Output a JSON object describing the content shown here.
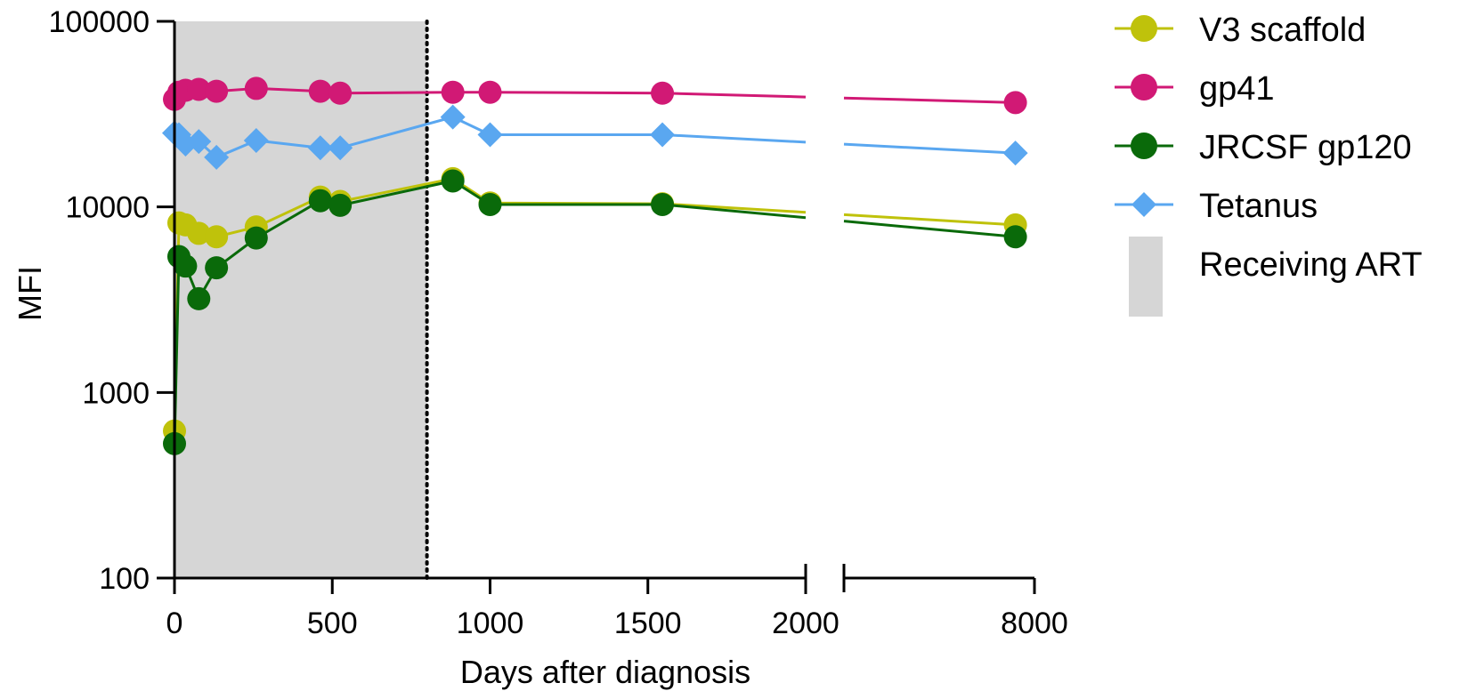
{
  "chart_data": {
    "type": "line",
    "title": "",
    "xlabel": "Days after diagnosis",
    "ylabel": "MFI",
    "yscale": "log",
    "ylim": [
      100,
      100000
    ],
    "yticks": [
      100,
      1000,
      10000,
      100000
    ],
    "ytick_labels": [
      "100",
      "1000",
      "10000",
      "100000"
    ],
    "x_axis_break": {
      "segment1": [
        0,
        2000
      ],
      "segment2": [
        2000,
        8000
      ]
    },
    "xticks": [
      0,
      500,
      1000,
      1500,
      2000,
      8000
    ],
    "xtick_labels": [
      "0",
      "500",
      "1000",
      "1500",
      "2000",
      "8000"
    ],
    "shaded_region": {
      "label": "Receiving ART",
      "x": [
        0,
        800
      ],
      "color": "#d6d6d6"
    },
    "vertical_line": {
      "x": 800,
      "style": "dotted"
    },
    "series": [
      {
        "name": "V3 scaffold",
        "color": "#bfc20b",
        "marker": "circle",
        "points": [
          [
            0,
            620
          ],
          [
            14,
            8200
          ],
          [
            35,
            8000
          ],
          [
            77,
            7200
          ],
          [
            133,
            6900
          ],
          [
            259,
            7800
          ],
          [
            462,
            11300
          ],
          [
            525,
            10700
          ],
          [
            882,
            14200
          ],
          [
            1000,
            10500
          ],
          [
            1546,
            10400
          ],
          [
            7400,
            8000
          ]
        ]
      },
      {
        "name": "gp41",
        "color": "#d11975",
        "marker": "circle",
        "points": [
          [
            0,
            38000
          ],
          [
            14,
            41500
          ],
          [
            35,
            42500
          ],
          [
            77,
            43000
          ],
          [
            133,
            42000
          ],
          [
            259,
            43500
          ],
          [
            462,
            42000
          ],
          [
            525,
            41000
          ],
          [
            882,
            41500
          ],
          [
            1000,
            41500
          ],
          [
            1546,
            41000
          ],
          [
            7400,
            36500
          ]
        ]
      },
      {
        "name": "JRCSF gp120",
        "color": "#0a6a0a",
        "marker": "circle",
        "points": [
          [
            0,
            530
          ],
          [
            14,
            5400
          ],
          [
            35,
            4800
          ],
          [
            77,
            3200
          ],
          [
            133,
            4700
          ],
          [
            259,
            6800
          ],
          [
            462,
            10800
          ],
          [
            525,
            10200
          ],
          [
            882,
            13800
          ],
          [
            1000,
            10300
          ],
          [
            1546,
            10300
          ],
          [
            7400,
            6900
          ]
        ]
      },
      {
        "name": "Tetanus",
        "color": "#5aa7f0",
        "marker": "diamond",
        "points": [
          [
            0,
            25000
          ],
          [
            14,
            24500
          ],
          [
            35,
            21800
          ],
          [
            77,
            22500
          ],
          [
            133,
            18500
          ],
          [
            259,
            22800
          ],
          [
            462,
            20800
          ],
          [
            525,
            20800
          ],
          [
            882,
            30500
          ],
          [
            1000,
            24500
          ],
          [
            1546,
            24500
          ],
          [
            7400,
            19500
          ]
        ]
      }
    ],
    "legend": {
      "placement": "right"
    }
  }
}
